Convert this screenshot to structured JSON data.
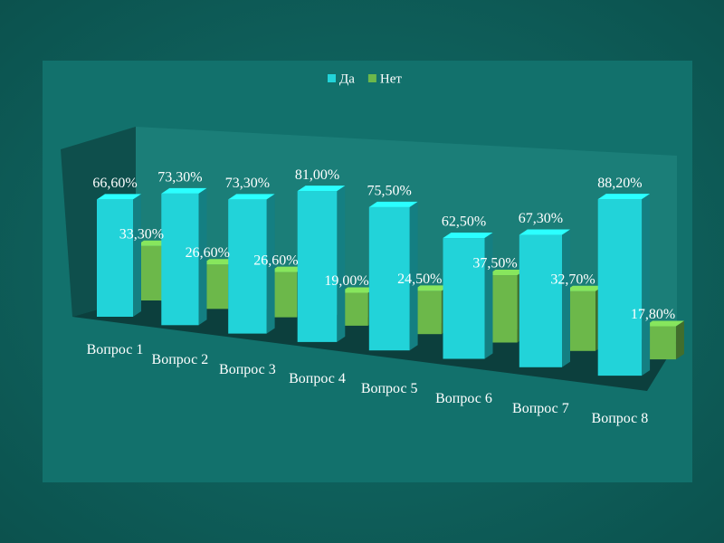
{
  "chart_data": {
    "type": "bar3d",
    "categories": [
      "Вопрос 1",
      "Вопрос 2",
      "Вопрос 3",
      "Вопрос 4",
      "Вопрос 5",
      "Вопрос 6",
      "Вопрос 7",
      "Вопрос 8"
    ],
    "series": [
      {
        "name": "Да",
        "color": "#22d3d9",
        "values": [
          66.6,
          73.3,
          73.3,
          81.0,
          75.5,
          62.5,
          67.3,
          88.2
        ],
        "value_labels": [
          "66,60%",
          "73,30%",
          "73,30%",
          "81,00%",
          "75,50%",
          "62,50%",
          "67,30%",
          "88,20%"
        ]
      },
      {
        "name": "Нет",
        "color": "#6cb84a",
        "values": [
          33.3,
          26.6,
          26.6,
          19.0,
          24.5,
          37.5,
          32.7,
          17.8
        ],
        "value_labels": [
          "33,30%",
          "26,60%",
          "26,60%",
          "19,00%",
          "24,50%",
          "37,50%",
          "32,70%",
          "17,80%"
        ]
      }
    ],
    "legend": "top"
  }
}
